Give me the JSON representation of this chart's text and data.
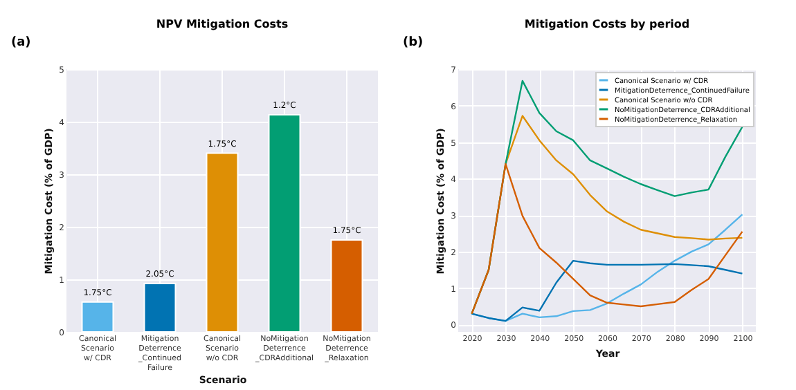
{
  "chart_data": [
    {
      "type": "bar",
      "title": "NPV Mitigation Costs",
      "xlabel": "Scenario",
      "ylabel": "Mitigation Cost (% of GDP)",
      "annotations": [
        "(a)",
        {
          "text": "1.75°C",
          "x": "Canonical Scenario\nw/ CDR",
          "y": 0.57
        },
        {
          "text": "2.05°C",
          "x": "MitigationDeterrence\n_ContinuedFailure",
          "y": 0.92
        },
        {
          "text": "1.75°C",
          "x": "Canonical Scenario\nw/o CDR",
          "y": 3.4
        },
        {
          "text": "1.2°C",
          "x": "NoMitigationDeterrence\n_CDRAdditional",
          "y": 4.13
        },
        {
          "text": "1.75°C",
          "x": "NoMitigationDeterrence\n_Relaxation",
          "y": 1.75
        }
      ],
      "categories": [
        "Canonical Scenario\nw/ CDR",
        "MitigationDeterrence\n_ContinuedFailure",
        "Canonical Scenario\nw/o CDR",
        "NoMitigationDeterrence\n_CDRAdditional",
        "NoMitigationDeterrence\n_Relaxation"
      ],
      "values": [
        0.57,
        0.92,
        3.4,
        4.13,
        1.75
      ],
      "colors": [
        "#56b4e9",
        "#0173b2",
        "#de8f05",
        "#029e73",
        "#d55e00"
      ],
      "ylim": [
        0,
        5
      ],
      "yticks": [
        0,
        1,
        2,
        3,
        4,
        5
      ],
      "grid": true
    },
    {
      "type": "line",
      "title": "Mitigation Costs by period",
      "xlabel": "Year",
      "ylabel": "Mitigation Cost (% of GDP)",
      "annotations": [
        "(b)"
      ],
      "x": [
        2020,
        2025,
        2030,
        2035,
        2040,
        2045,
        2050,
        2055,
        2060,
        2065,
        2070,
        2075,
        2080,
        2085,
        2090,
        2095,
        2100
      ],
      "series": [
        {
          "name": "Canonical Scenario w/ CDR",
          "color": "#56b4e9",
          "values": [
            0.3,
            0.18,
            0.1,
            0.3,
            0.2,
            0.23,
            0.37,
            0.4,
            0.58,
            0.85,
            1.1,
            1.45,
            1.75,
            2.0,
            2.2,
            2.6,
            3.02
          ]
        },
        {
          "name": "MitigationDeterrence_ContinuedFailure",
          "color": "#0173b2",
          "values": [
            0.3,
            0.18,
            0.1,
            0.47,
            0.38,
            1.15,
            1.75,
            1.68,
            1.64,
            1.64,
            1.64,
            1.65,
            1.66,
            1.63,
            1.6,
            1.5,
            1.4
          ]
        },
        {
          "name": "Canonical Scenario w/o CDR",
          "color": "#de8f05",
          "values": [
            0.3,
            1.5,
            4.4,
            5.72,
            5.05,
            4.5,
            4.12,
            3.55,
            3.1,
            2.82,
            2.6,
            2.5,
            2.4,
            2.37,
            2.33,
            2.36,
            2.38
          ]
        },
        {
          "name": "NoMitigationDeterrence_CDRAdditional",
          "color": "#029e73",
          "values": [
            0.3,
            1.5,
            4.4,
            6.68,
            5.8,
            5.3,
            5.05,
            4.5,
            4.28,
            4.05,
            3.85,
            3.68,
            3.52,
            3.62,
            3.7,
            4.6,
            5.42
          ]
        },
        {
          "name": "NoMitigationDeterrence_Relaxation",
          "color": "#d55e00",
          "values": [
            0.3,
            1.5,
            4.4,
            2.98,
            2.1,
            1.7,
            1.25,
            0.8,
            0.6,
            0.55,
            0.5,
            0.56,
            0.62,
            0.95,
            1.25,
            1.9,
            2.55
          ]
        }
      ],
      "xlim": [
        2016,
        2104
      ],
      "xticks": [
        2020,
        2030,
        2040,
        2050,
        2060,
        2070,
        2080,
        2090,
        2100
      ],
      "ylim": [
        -0.2,
        7
      ],
      "yticks": [
        0,
        1,
        2,
        3,
        4,
        5,
        6,
        7
      ],
      "grid": true,
      "legend": "top right"
    }
  ]
}
